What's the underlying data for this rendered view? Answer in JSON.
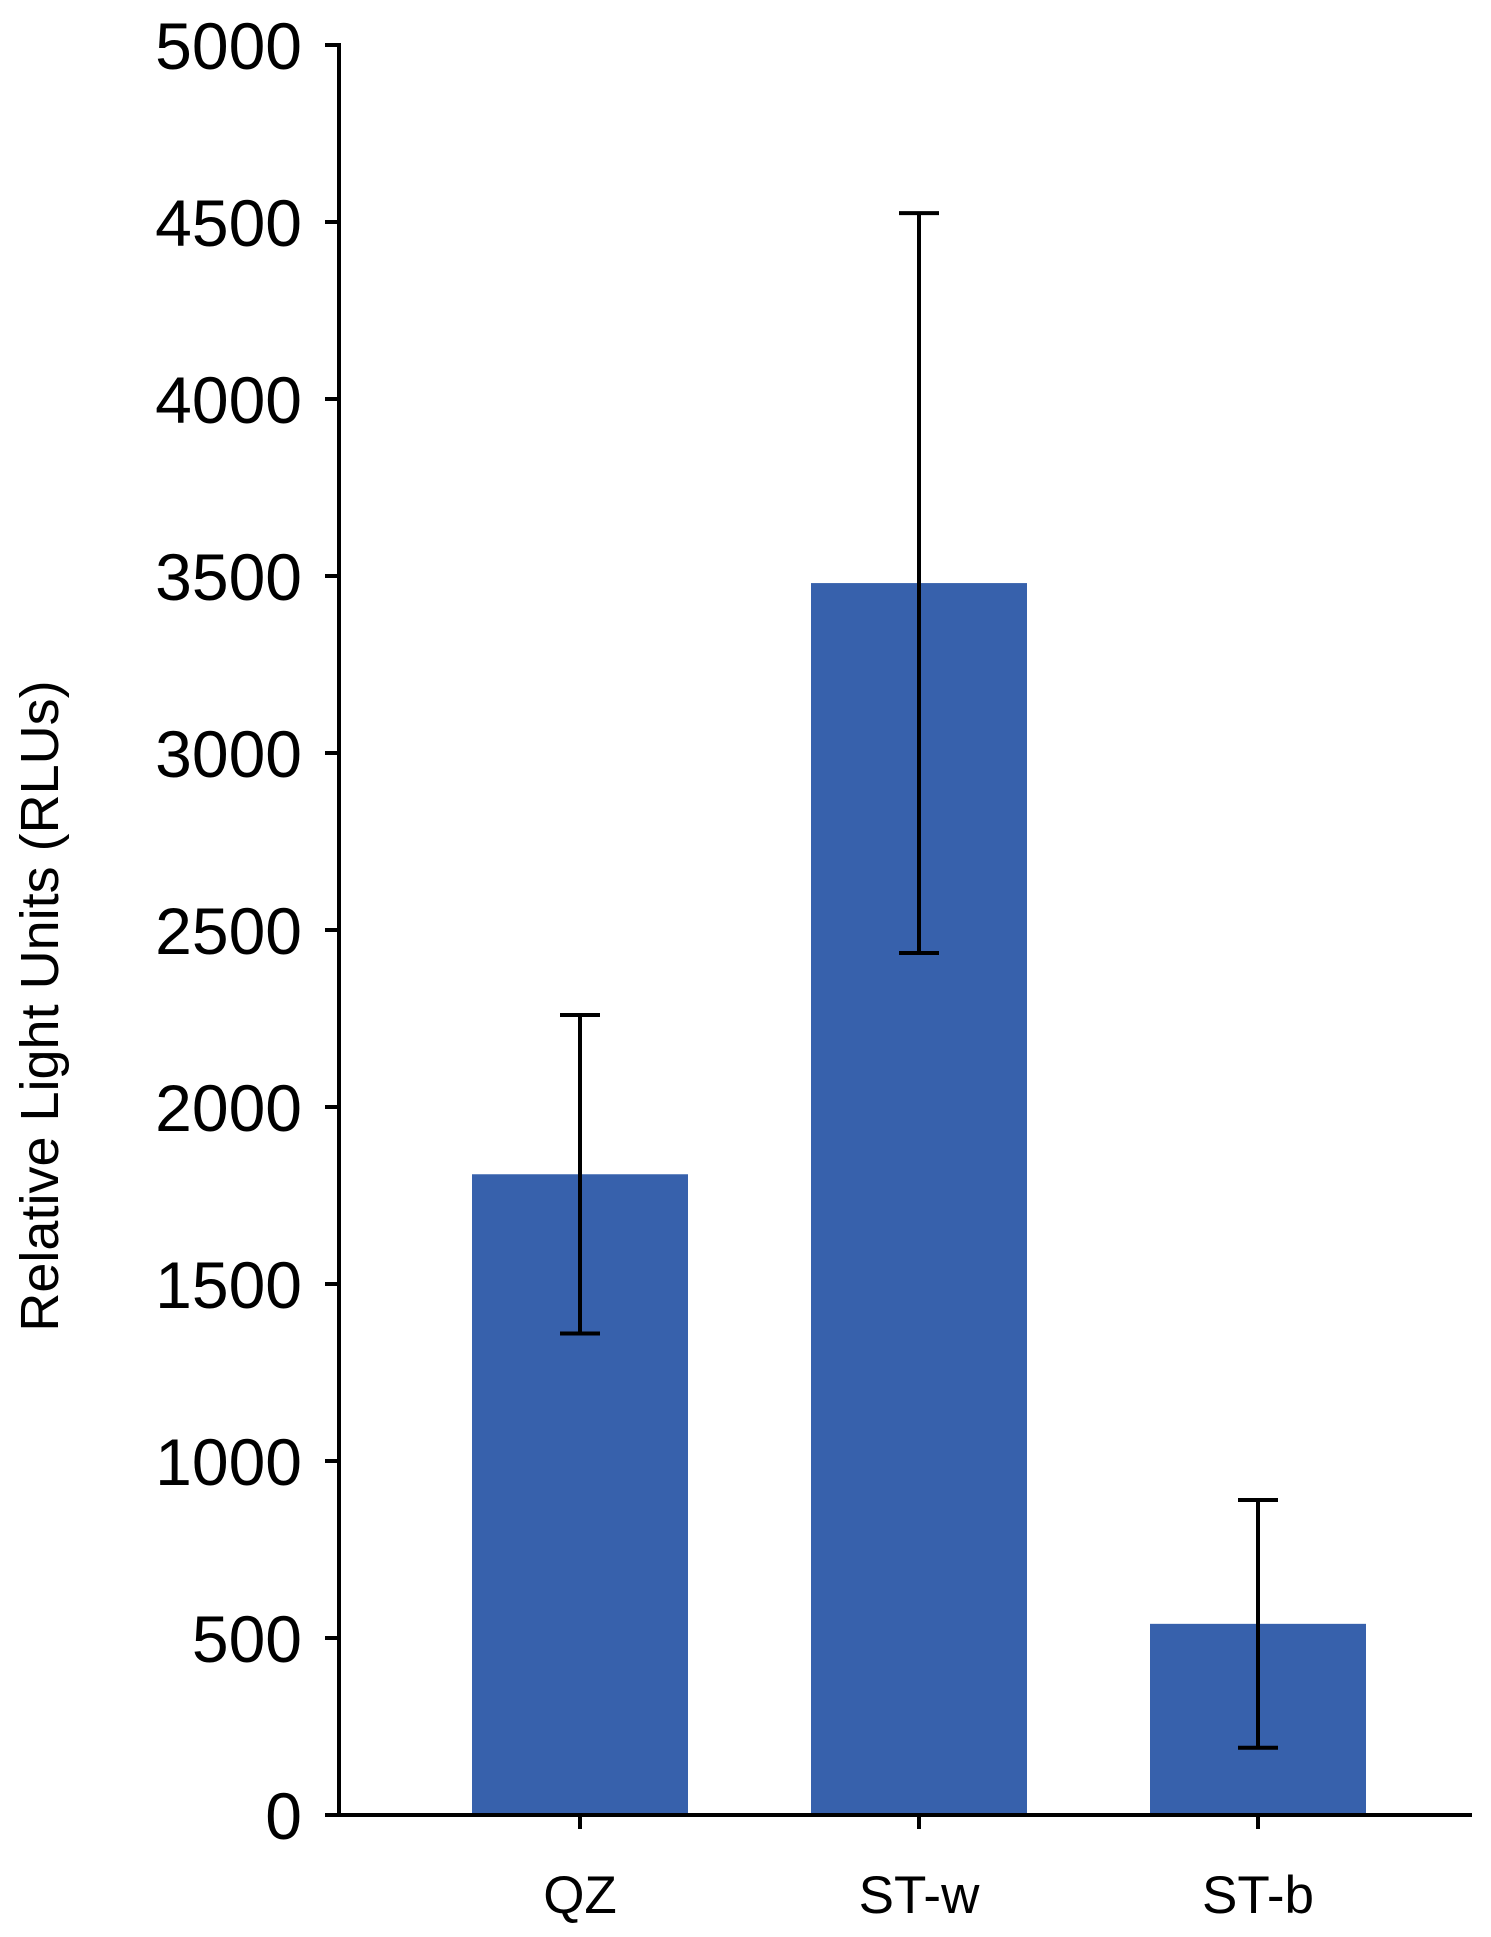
{
  "chart_data": {
    "type": "bar",
    "title": "",
    "xlabel": "",
    "ylabel": "Relative Light Units (RLUs)",
    "ylim": [
      0,
      5000
    ],
    "yticks": [
      0,
      500,
      1000,
      1500,
      2000,
      2500,
      3000,
      3500,
      4000,
      4500,
      5000
    ],
    "categories": [
      "QZ",
      "ST-w",
      "ST-b"
    ],
    "values": [
      1810,
      3480,
      540
    ],
    "error": [
      450,
      1045,
      350
    ],
    "grid": false,
    "legend": "none",
    "colors": {
      "bar": "#3761ac",
      "axis": "#000000",
      "text": "#000000"
    }
  }
}
